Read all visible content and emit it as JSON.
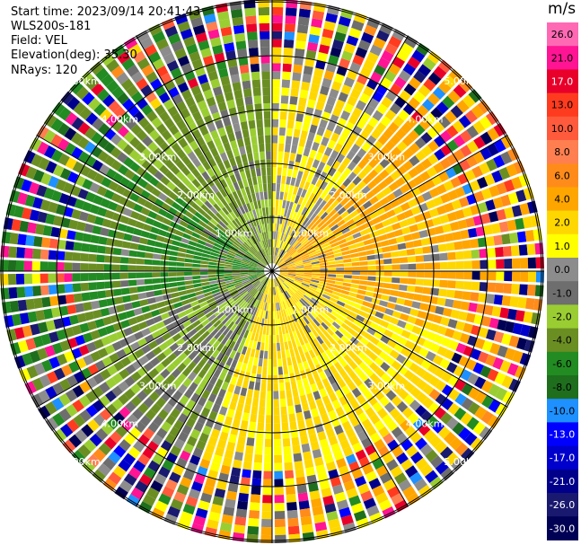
{
  "header": {
    "start_time": "Start time: 2023/09/14 20:41:43",
    "instrument": "WLS200s-181",
    "field": "Field: VEL",
    "elevation": "Elevation(deg): 35.30",
    "nrays": "NRays: 120"
  },
  "colorbar": {
    "units": "m/s",
    "ticks": [
      "26.0",
      "21.0",
      "17.0",
      "13.0",
      "10.0",
      "8.0",
      "6.0",
      "4.0",
      "2.0",
      "1.0",
      "0.0",
      "-1.0",
      "-2.0",
      "-4.0",
      "-6.0",
      "-8.0",
      "-10.0",
      "-13.0",
      "-17.0",
      "-21.0",
      "-26.0",
      "-30.0"
    ],
    "colors": [
      "#ff69b4",
      "#ff1493",
      "#e8002a",
      "#ff3b1f",
      "#ff5a3c",
      "#ff7f50",
      "#ff8c1a",
      "#ffa500",
      "#ffd700",
      "#ffff00",
      "#8c8c8c",
      "#6e6e6e",
      "#9acd32",
      "#6b8e23",
      "#228b22",
      "#1e6e1e",
      "#1e90ff",
      "#0000ff",
      "#0000cd",
      "#00008b",
      "#191970",
      "#000055"
    ]
  },
  "chart_data": {
    "type": "polar-ppi",
    "field": "VEL",
    "units": "m/s",
    "nrays": 120,
    "elevation_deg": 35.3,
    "range_rings_km": [
      1.0,
      2.0,
      3.0,
      4.0,
      5.0
    ],
    "ring_labels": [
      "1.00km",
      "2.00km",
      "3.00km",
      "4.00km",
      "5.00km"
    ],
    "pattern": {
      "sector_speed_ms": [
        {
          "from_deg": 0,
          "to_deg": 40,
          "v": 1.5
        },
        {
          "from_deg": 40,
          "to_deg": 110,
          "v": 4.5
        },
        {
          "from_deg": 110,
          "to_deg": 200,
          "v": 2.5
        },
        {
          "from_deg": 200,
          "to_deg": 250,
          "v": -1.5
        },
        {
          "from_deg": 250,
          "to_deg": 310,
          "v": -4.0
        },
        {
          "from_deg": 310,
          "to_deg": 360,
          "v": -2.5
        }
      ],
      "noise_beyond_km": 3.6
    }
  }
}
